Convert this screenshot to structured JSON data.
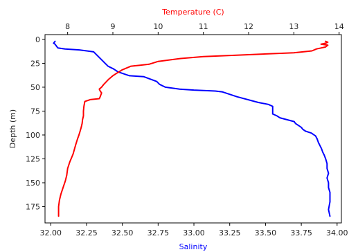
{
  "chart_data": {
    "type": "line",
    "y_axis": {
      "label": "Depth (m)",
      "range": [
        -5,
        192
      ],
      "inverted": true,
      "ticks": [
        0,
        25,
        50,
        75,
        100,
        125,
        150,
        175
      ]
    },
    "x_bottom": {
      "label": "Salinity",
      "color": "#0000ff",
      "range": [
        31.96,
        34.03
      ],
      "ticks": [
        "32.00",
        "32.25",
        "32.50",
        "32.75",
        "33.00",
        "33.25",
        "33.50",
        "33.75",
        "34.00"
      ]
    },
    "x_top": {
      "label": "Temperature (C)",
      "color": "#ff0000",
      "range": [
        7.5,
        14.05
      ],
      "ticks": [
        "8",
        "9",
        "10",
        "11",
        "12",
        "13",
        "14"
      ]
    },
    "grid": false,
    "series": [
      {
        "color": "#0000ff",
        "axis": "x_bottom",
        "x": [
          33.95,
          33.94,
          33.95,
          33.95,
          33.95,
          33.94,
          33.94,
          33.93,
          33.94,
          33.93,
          33.93,
          33.92,
          33.91,
          33.9,
          33.89,
          33.88,
          33.87,
          33.86,
          33.85,
          33.82,
          33.8,
          33.78,
          33.76,
          33.75,
          33.73,
          33.71,
          33.7,
          33.65,
          33.6,
          33.58,
          33.55,
          33.55,
          33.52,
          33.45,
          33.3,
          33.2,
          33.15,
          33.0,
          32.9,
          32.8,
          32.76,
          32.74,
          32.65,
          32.55,
          32.47,
          32.44,
          32.4,
          32.38,
          32.36,
          32.3,
          32.2,
          32.1,
          32.05,
          32.04,
          32.03,
          32.02,
          32.03
        ],
        "y": [
          185,
          178,
          170,
          165,
          160,
          155,
          150,
          145,
          140,
          135,
          130,
          125,
          121,
          118,
          114,
          111,
          108,
          104,
          101,
          98,
          97,
          96,
          94,
          92,
          90,
          88,
          86,
          84,
          82,
          80,
          78,
          70,
          68,
          66,
          60,
          55,
          54,
          53,
          52,
          50,
          47,
          44,
          39,
          38,
          34,
          31,
          28,
          25,
          22,
          13,
          11,
          10,
          9,
          7,
          5,
          4,
          2
        ]
      },
      {
        "color": "#ff0000",
        "axis": "x_top",
        "x": [
          7.8,
          7.8,
          7.82,
          7.85,
          7.9,
          7.95,
          7.98,
          8.0,
          8.05,
          8.12,
          8.18,
          8.22,
          8.25,
          8.27,
          8.3,
          8.32,
          8.33,
          8.35,
          8.35,
          8.36,
          8.38,
          8.5,
          8.7,
          8.72,
          8.75,
          8.72,
          8.7,
          8.75,
          8.8,
          8.9,
          9.0,
          9.1,
          9.2,
          9.4,
          9.6,
          9.8,
          10.0,
          10.5,
          11.0,
          12.0,
          13.0,
          13.4,
          13.5,
          13.6,
          13.7,
          13.75,
          13.6,
          13.7,
          13.75,
          13.7
        ],
        "y": [
          185,
          175,
          168,
          162,
          155,
          148,
          142,
          135,
          128,
          120,
          110,
          104,
          100,
          97,
          92,
          88,
          84,
          80,
          75,
          70,
          65,
          63,
          62,
          60,
          56,
          54,
          52,
          50,
          47,
          42,
          38,
          35,
          32,
          28,
          27,
          26,
          23,
          20,
          18,
          16,
          14,
          12,
          10,
          9,
          8,
          6,
          5,
          4,
          3,
          2
        ]
      }
    ]
  }
}
